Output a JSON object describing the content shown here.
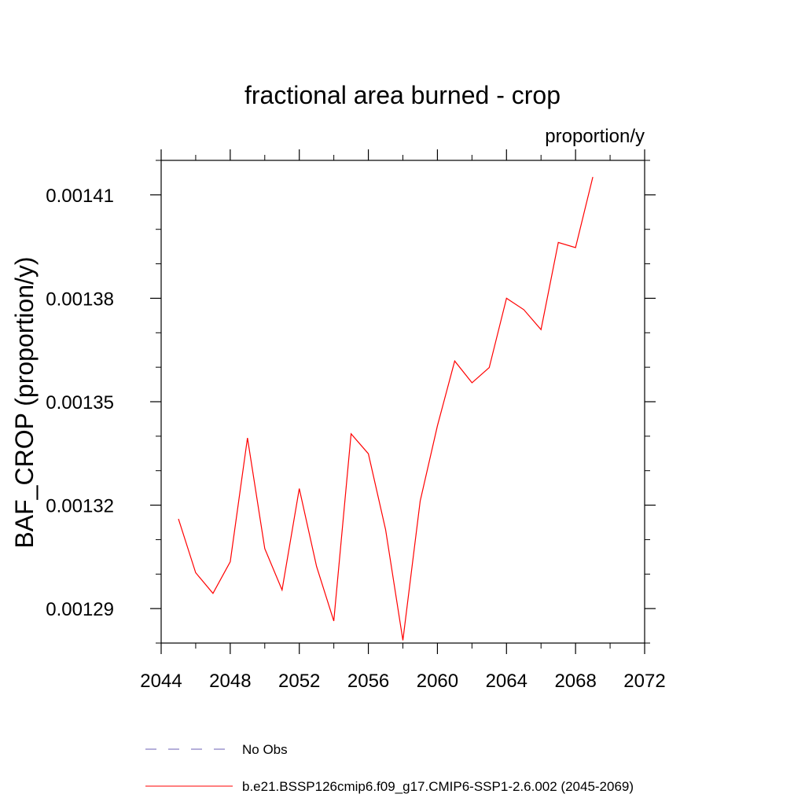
{
  "chart_data": {
    "type": "line",
    "title": "fractional area burned - crop",
    "units_label": "proportion/y",
    "ylabel": "BAF_CROP  (proportion/y)",
    "xlabel": "",
    "xlim": [
      2044,
      2072
    ],
    "ylim": [
      0.00128,
      0.00142
    ],
    "x_ticks": [
      2044,
      2048,
      2052,
      2056,
      2060,
      2064,
      2068,
      2072
    ],
    "x_tick_labels": [
      "2044",
      "2048",
      "2052",
      "2056",
      "2060",
      "2064",
      "2068",
      "2072"
    ],
    "y_ticks": [
      0.00129,
      0.00132,
      0.00135,
      0.00138,
      0.00141
    ],
    "y_tick_labels": [
      "0.00129",
      "0.00132",
      "0.00135",
      "0.00138",
      "0.00141"
    ],
    "grid": false,
    "series": [
      {
        "name": "b.e21.BSSP126cmip6.f09_g17.CMIP6-SSP1-2.6.002 (2045-2069)",
        "color": "#ff0000",
        "style": "solid",
        "x": [
          2045,
          2046,
          2047,
          2048,
          2049,
          2050,
          2051,
          2052,
          2053,
          2054,
          2055,
          2056,
          2057,
          2058,
          2059,
          2060,
          2061,
          2062,
          2063,
          2064,
          2065,
          2066,
          2067,
          2068,
          2069
        ],
        "values": [
          0.001316,
          0.0013004,
          0.0012944,
          0.0013036,
          0.0013395,
          0.0013074,
          0.0012954,
          0.0013248,
          0.0013022,
          0.0012864,
          0.0013407,
          0.0013349,
          0.0013129,
          0.0012808,
          0.0013212,
          0.001343,
          0.0013618,
          0.0013555,
          0.0013599,
          0.00138,
          0.0013767,
          0.0013709,
          0.0013962,
          0.0013947,
          0.0014152
        ]
      }
    ],
    "legend": [
      {
        "label": "No Obs",
        "color": "#6b5fb5",
        "style": "dashed"
      },
      {
        "label": "b.e21.BSSP126cmip6.f09_g17.CMIP6-SSP1-2.6.002 (2045-2069)",
        "color": "#ff0000",
        "style": "solid"
      }
    ],
    "legend_position": "bottom-left"
  }
}
